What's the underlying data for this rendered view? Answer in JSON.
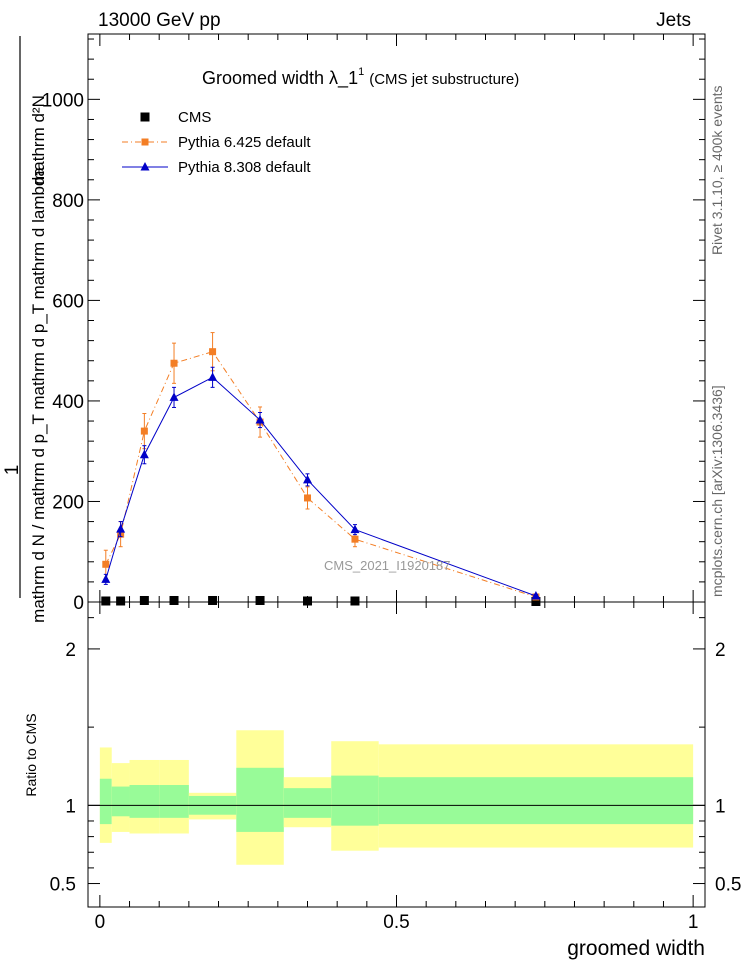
{
  "header": {
    "left": "13000 GeV pp",
    "right": "Jets"
  },
  "side_labels": {
    "rivet": "Rivet 3.1.10, ≥ 400k events",
    "mcplots": "mcplots.cern.ch [arXiv:1306.3436]"
  },
  "chart_data": {
    "type": "scatter",
    "title_main": "Groomed width  λ_1",
    "title_sup": "1",
    "title_sub": "(CMS jet substructure)",
    "watermark": "CMS_2021_I1920187",
    "xlabel": "groomed width",
    "ylabel_num": "mathrm d²N",
    "ylabel_den": "mathrm d N / mathrm d p_T mathrm d p_T mathrm d lambda",
    "ylabel_pre": "1",
    "ratio_ylabel": "Ratio to CMS",
    "xlim": [
      -0.02,
      1.02
    ],
    "ylim": [
      0,
      1130
    ],
    "ratio_ylim": [
      0.35,
      2.3
    ],
    "x_ticks": [
      {
        "v": 0,
        "label": "0"
      },
      {
        "v": 0.5,
        "label": "0.5"
      },
      {
        "v": 1,
        "label": "1"
      }
    ],
    "y_ticks": [
      {
        "v": 0,
        "label": "0"
      },
      {
        "v": 200,
        "label": "200"
      },
      {
        "v": 400,
        "label": "400"
      },
      {
        "v": 600,
        "label": "600"
      },
      {
        "v": 800,
        "label": "800"
      },
      {
        "v": 1000,
        "label": "1000"
      }
    ],
    "ratio_ticks": [
      {
        "v": 0.5,
        "label": "0.5"
      },
      {
        "v": 1,
        "label": "1"
      },
      {
        "v": 2,
        "label": "2"
      }
    ],
    "bins": [
      0,
      0.02,
      0.05,
      0.1,
      0.15,
      0.23,
      0.31,
      0.39,
      0.47,
      1.0
    ],
    "series": [
      {
        "name": "CMS",
        "color": "#000000",
        "style": "points",
        "x": [
          0.01,
          0.035,
          0.075,
          0.125,
          0.19,
          0.27,
          0.35,
          0.43,
          0.735
        ],
        "y": [
          2,
          2,
          3,
          3,
          3,
          3,
          2,
          2,
          1
        ]
      },
      {
        "name": "Pythia 6.425 default",
        "color": "#f37e25",
        "style": "dashdot",
        "marker": "square",
        "x": [
          0.01,
          0.035,
          0.075,
          0.125,
          0.19,
          0.27,
          0.35,
          0.43,
          0.735
        ],
        "y": [
          75,
          135,
          340,
          475,
          498,
          358,
          207,
          125,
          10
        ],
        "err": [
          28,
          25,
          35,
          40,
          38,
          30,
          22,
          15,
          3
        ]
      },
      {
        "name": "Pythia 8.308 default",
        "color": "#0000c8",
        "style": "solid",
        "marker": "triangle",
        "x": [
          0.01,
          0.035,
          0.075,
          0.125,
          0.19,
          0.27,
          0.35,
          0.43,
          0.735
        ],
        "y": [
          45,
          145,
          293,
          407,
          447,
          362,
          243,
          144,
          12
        ],
        "err": [
          10,
          15,
          18,
          20,
          20,
          15,
          12,
          10,
          3
        ]
      }
    ],
    "ratio_bands": {
      "inner_color": "#98fb98",
      "outer_color": "#ffff99",
      "inner": [
        [
          0.88,
          1.17
        ],
        [
          0.93,
          1.12
        ],
        [
          0.92,
          1.13
        ],
        [
          0.92,
          1.13
        ],
        [
          0.94,
          1.06
        ],
        [
          0.83,
          1.24
        ],
        [
          0.92,
          1.11
        ],
        [
          0.87,
          1.19
        ],
        [
          0.88,
          1.18
        ]
      ],
      "outer": [
        [
          0.76,
          1.37
        ],
        [
          0.83,
          1.27
        ],
        [
          0.82,
          1.29
        ],
        [
          0.82,
          1.29
        ],
        [
          0.91,
          1.08
        ],
        [
          0.62,
          1.48
        ],
        [
          0.86,
          1.18
        ],
        [
          0.71,
          1.41
        ],
        [
          0.73,
          1.39
        ]
      ]
    }
  }
}
